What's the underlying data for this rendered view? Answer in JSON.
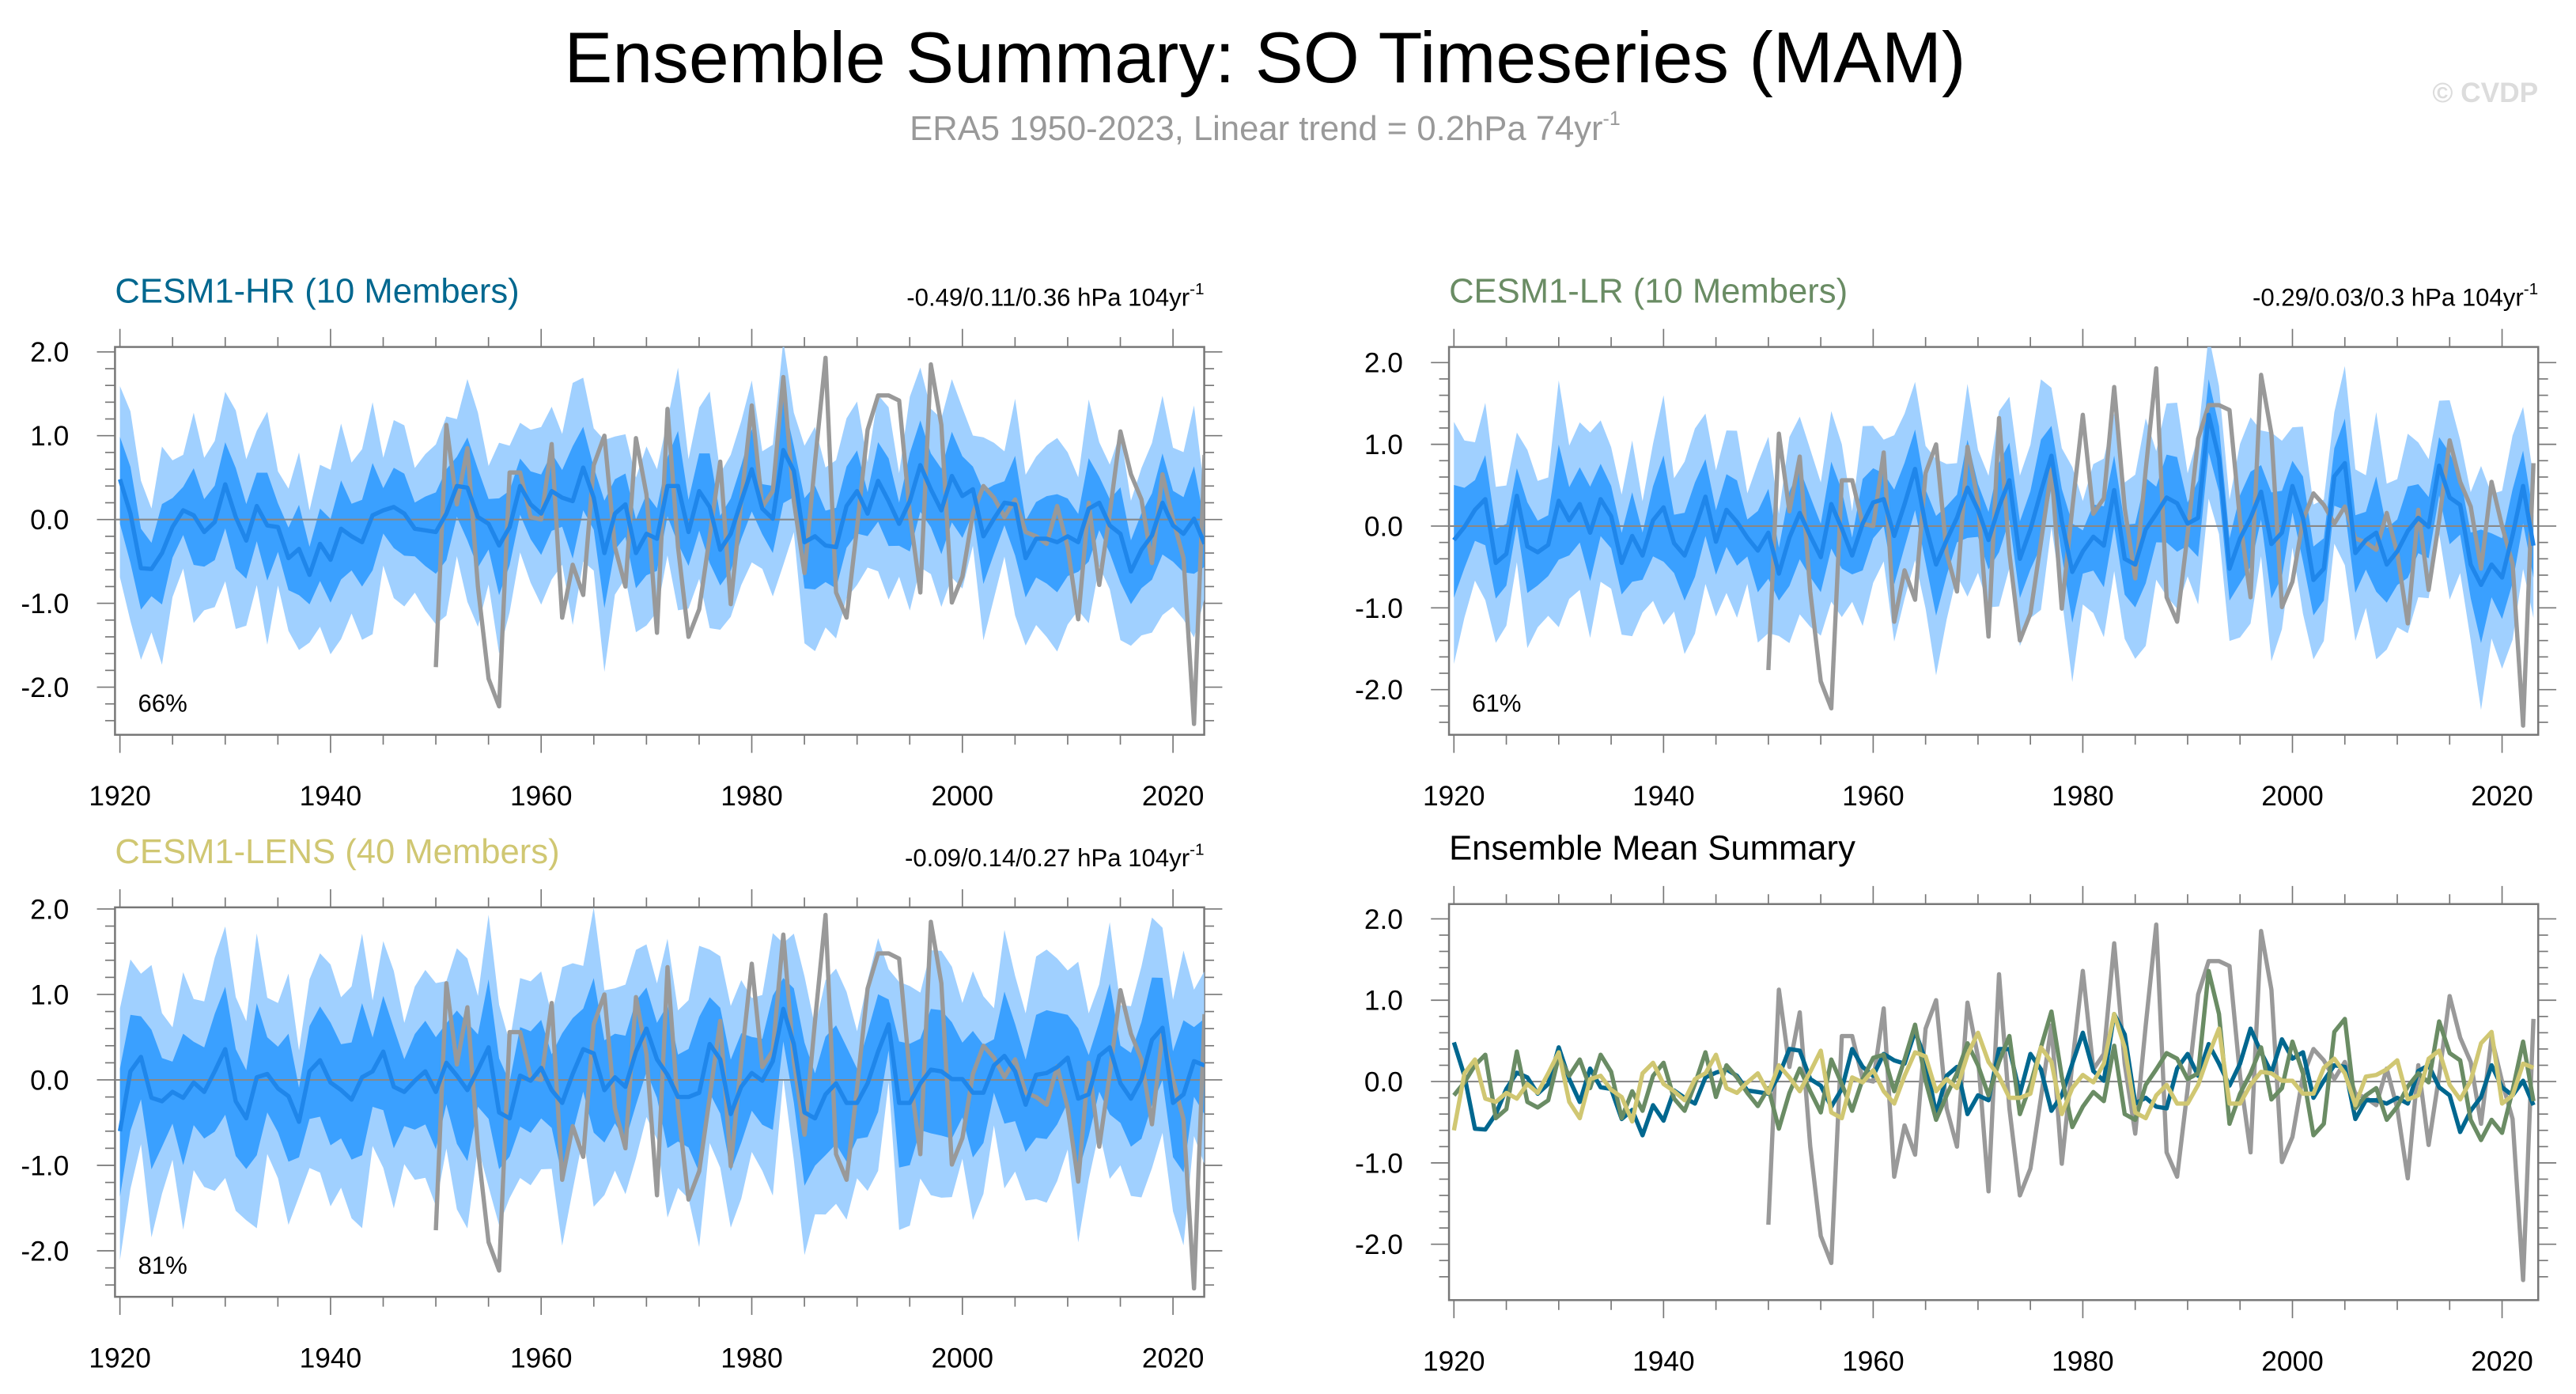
{
  "header": {
    "title": "Ensemble Summary: SO Timeseries (MAM)",
    "subtitle": "ERA5 1950-2023, Linear trend = 0.2hPa 74yr",
    "subtitle_sup": "-1",
    "watermark": "© CVDP"
  },
  "colors": {
    "band_outer": "#a0d0ff",
    "band_inner": "#3aa0ff",
    "ens_mean": "#1f86ea",
    "era5": "#999999",
    "hr": "#00678f",
    "lr": "#6a8c64",
    "lens": "#d0c772"
  },
  "chart_data": [
    {
      "type": "area",
      "id": "hr",
      "title": "CESM1-HR (10 Members)",
      "trend_text": "-0.49/0.11/0.36 hPa 104yr",
      "trend_sup": "-1",
      "percent_label": "66%",
      "xlim": [
        1920,
        2023
      ],
      "ylim": [
        -2.5,
        2.0
      ],
      "xticks": [
        1920,
        1940,
        1960,
        1980,
        2000,
        2020
      ],
      "yticks": [
        {
          "v": 2,
          "label": "2.0"
        },
        {
          "v": 1,
          "label": "1.0"
        },
        {
          "v": 0,
          "label": "0.0"
        },
        {
          "v": -1,
          "label": "-1.0"
        },
        {
          "v": -2,
          "label": "-2.0"
        }
      ],
      "inner_band_halfwidth": 0.45,
      "outer_band_halfwidth": 1.0,
      "mean_series": "hr",
      "obs_series": "era5"
    },
    {
      "type": "area",
      "id": "lr",
      "title": "CESM1-LR (10 Members)",
      "trend_text": "-0.29/0.03/0.3 hPa 104yr",
      "trend_sup": "-1",
      "percent_label": "61%",
      "xlim": [
        1920,
        2023
      ],
      "ylim": [
        -2.5,
        2.0
      ],
      "xticks": [
        1920,
        1940,
        1960,
        1980,
        2000,
        2020
      ],
      "yticks": [
        {
          "v": 2,
          "label": "2.0"
        },
        {
          "v": 1,
          "label": "1.0"
        },
        {
          "v": 0,
          "label": "0.0"
        },
        {
          "v": -1,
          "label": "-1.0"
        },
        {
          "v": -2,
          "label": "-2.0"
        }
      ],
      "inner_band_halfwidth": 0.45,
      "outer_band_halfwidth": 1.0,
      "mean_series": "lr",
      "obs_series": "era5"
    },
    {
      "type": "area",
      "id": "lens",
      "title": "CESM1-LENS (40 Members)",
      "trend_text": "-0.09/0.14/0.27 hPa 104yr",
      "trend_sup": "-1",
      "percent_label": "81%",
      "xlim": [
        1920,
        2023
      ],
      "ylim": [
        -2.5,
        2.0
      ],
      "xticks": [
        1920,
        1940,
        1960,
        1980,
        2000,
        2020
      ],
      "yticks": [
        {
          "v": 2,
          "label": "2.0"
        },
        {
          "v": 1,
          "label": "1.0"
        },
        {
          "v": 0,
          "label": "0.0"
        },
        {
          "v": -1,
          "label": "-1.0"
        },
        {
          "v": -2,
          "label": "-2.0"
        }
      ],
      "inner_band_halfwidth": 0.6,
      "outer_band_halfwidth": 1.2,
      "mean_series": "lens",
      "obs_series": "era5"
    },
    {
      "type": "line",
      "id": "summary",
      "title": "Ensemble Mean Summary",
      "xlim": [
        1920,
        2023
      ],
      "ylim": [
        -2.5,
        2.0
      ],
      "xticks": [
        1920,
        1940,
        1960,
        1980,
        2000,
        2020
      ],
      "yticks": [
        {
          "v": 2,
          "label": "2.0"
        },
        {
          "v": 1,
          "label": "1.0"
        },
        {
          "v": 0,
          "label": "0.0"
        },
        {
          "v": -1,
          "label": "-1.0"
        },
        {
          "v": -2,
          "label": "-2.0"
        }
      ],
      "lines": [
        "era5",
        "hr",
        "lr",
        "lens"
      ]
    }
  ],
  "series": {
    "hr": {
      "start": 1920,
      "values": [
        0.48,
        0.07,
        -0.58,
        -0.59,
        -0.4,
        -0.09,
        0.11,
        0.05,
        -0.15,
        -0.03,
        0.42,
        0.03,
        -0.25,
        0.16,
        -0.07,
        -0.09,
        -0.46,
        -0.35,
        -0.66,
        -0.29,
        -0.48,
        -0.11,
        -0.2,
        -0.27,
        0.05,
        0.11,
        0.15,
        0.07,
        -0.11,
        -0.13,
        -0.15,
        0.07,
        0.4,
        0.38,
        0.03,
        -0.05,
        -0.31,
        -0.09,
        0.4,
        0.18,
        0.07,
        0.34,
        0.26,
        0.22,
        0.62,
        0.26,
        -0.4,
        0.07,
        0.18,
        -0.4,
        -0.17,
        -0.23,
        0.4,
        0.4,
        -0.15,
        0.34,
        0.15,
        -0.36,
        -0.17,
        0.22,
        0.6,
        0.13,
        0.01,
        0.83,
        0.58,
        -0.27,
        -0.2,
        -0.31,
        -0.33,
        0.16,
        0.34,
        0.07,
        0.46,
        0.22,
        -0.05,
        0.22,
        0.65,
        0.36,
        0.11,
        0.52,
        0.28,
        0.36,
        -0.2,
        0.01,
        0.2,
        0.18,
        -0.46,
        -0.23,
        -0.23,
        -0.27,
        -0.2,
        -0.27,
        0.13,
        0.2,
        -0.07,
        -0.17,
        -0.62,
        -0.36,
        -0.19,
        0.2,
        -0.07,
        -0.17,
        0.01,
        -0.29
      ]
    },
    "lr": {
      "start": 1920,
      "values": [
        -0.17,
        -0.01,
        0.2,
        0.33,
        -0.45,
        -0.34,
        0.37,
        -0.25,
        -0.32,
        -0.23,
        0.31,
        0.07,
        0.27,
        -0.08,
        0.33,
        0.12,
        -0.45,
        -0.12,
        -0.36,
        0.07,
        0.23,
        -0.21,
        -0.36,
        -0.03,
        0.36,
        -0.19,
        0.2,
        0.05,
        -0.14,
        -0.3,
        -0.08,
        -0.58,
        -0.14,
        0.16,
        -0.12,
        -0.38,
        0.27,
        -0.03,
        -0.36,
        0.03,
        0.29,
        0.33,
        -0.12,
        0.27,
        0.7,
        0.01,
        -0.47,
        -0.17,
        0.1,
        0.47,
        0.2,
        -0.17,
        0.24,
        0.56,
        -0.4,
        -0.04,
        0.42,
        0.86,
        0.06,
        -0.56,
        -0.31,
        -0.13,
        -0.24,
        0.44,
        -0.4,
        -0.47,
        -0.04,
        0.15,
        0.35,
        0.28,
        0.03,
        0.1,
        1.36,
        0.83,
        -0.52,
        -0.15,
        0.1,
        0.42,
        -0.22,
        -0.08,
        0.49,
        0.1,
        -0.66,
        -0.52,
        0.61,
        0.77,
        -0.33,
        -0.17,
        -0.08,
        -0.47,
        -0.31,
        -0.06,
        0.1,
        -0.01,
        0.74,
        0.35,
        0.26,
        -0.47,
        -0.72,
        -0.47,
        -0.63,
        -0.11,
        0.49,
        -0.24
      ]
    },
    "lens": {
      "start": 1920,
      "values": [
        -0.6,
        0.1,
        0.27,
        -0.21,
        -0.25,
        -0.14,
        -0.21,
        -0.03,
        -0.14,
        0.1,
        0.36,
        -0.25,
        -0.45,
        0.03,
        0.07,
        -0.1,
        -0.19,
        -0.49,
        0.1,
        0.23,
        -0.03,
        -0.12,
        -0.23,
        0.03,
        0.1,
        0.33,
        -0.08,
        -0.14,
        -0.01,
        0.1,
        -0.14,
        0.2,
        0.05,
        -0.12,
        0.12,
        0.38,
        -0.38,
        -0.45,
        0.05,
        -0.01,
        0.14,
        -0.12,
        -0.27,
        0.07,
        0.36,
        0.31,
        -0.12,
        0.03,
        -0.08,
        0.33,
        0.6,
        0.24,
        0.06,
        -0.2,
        -0.2,
        -0.15,
        0.42,
        0.24,
        -0.4,
        -0.08,
        0.08,
        -0.01,
        0.22,
        0.83,
        0.42,
        -0.38,
        -0.45,
        -0.17,
        -0.04,
        -0.27,
        -0.27,
        -0.04,
        0.33,
        0.65,
        -0.27,
        -0.27,
        -0.04,
        0.12,
        0.1,
        0.01,
        0.01,
        -0.15,
        -0.15,
        0.17,
        0.28,
        0.1,
        -0.29,
        0.06,
        0.08,
        0.15,
        0.26,
        -0.22,
        -0.17,
        0.28,
        0.38,
        -0.04,
        -0.22,
        0.01,
        0.47,
        0.61,
        -0.27,
        -0.17,
        0.22,
        0.17
      ]
    },
    "era5": {
      "start": 1950,
      "values": [
        -1.76,
        1.13,
        0.18,
        0.85,
        -0.8,
        -1.9,
        -2.23,
        0.56,
        0.56,
        0.03,
        0.0,
        0.9,
        -1.17,
        -0.54,
        -0.9,
        0.65,
        1.0,
        -0.33,
        -0.8,
        0.97,
        0.3,
        -1.35,
        1.32,
        -0.33,
        -1.4,
        -1.07,
        -0.2,
        0.69,
        -1.01,
        0.22,
        1.36,
        0.15,
        0.34,
        1.7,
        0.22,
        -0.64,
        0.69,
        1.93,
        -0.87,
        -1.17,
        -0.09,
        1.07,
        1.48,
        1.48,
        1.42,
        0.07,
        -0.87,
        1.85,
        1.13,
        -0.99,
        -0.68,
        0.07,
        0.4,
        0.26,
        0.03,
        0.24,
        -0.15,
        -0.2,
        -0.29,
        0.16,
        -0.33,
        -1.19,
        0.2,
        -0.78,
        0.07,
        1.05,
        0.54,
        0.24,
        -0.52,
        0.54,
        0.0,
        -0.46,
        -2.44,
        0.77
      ]
    }
  }
}
